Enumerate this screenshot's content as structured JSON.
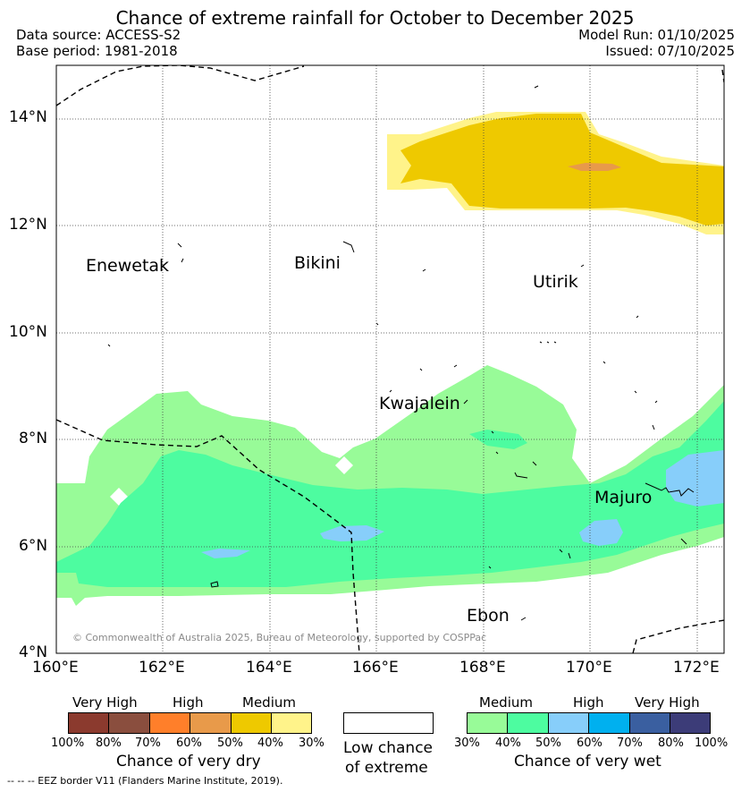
{
  "header": {
    "title": "Chance of extreme rainfall for October to December 2025",
    "data_source": "Data source: ACCESS-S2",
    "base_period": "Base period: 1981-2018",
    "model_run": "Model Run: 01/10/2025",
    "issued": "Issued: 07/10/2025"
  },
  "map": {
    "lat_labels": [
      "14°N",
      "12°N",
      "10°N",
      "8°N",
      "6°N",
      "4°N"
    ],
    "lon_labels": [
      "160°E",
      "162°E",
      "164°E",
      "166°E",
      "168°E",
      "170°E",
      "172°E"
    ],
    "places": {
      "enewetak": "Enewetak",
      "bikini": "Bikini",
      "utirik": "Utirik",
      "kwajalein": "Kwajalein",
      "majuro": "Majuro",
      "ebon": "Ebon"
    },
    "copyright": "© Commonwealth of Australia 2025, Bureau of Meteorology, supported by COSPPac"
  },
  "legend": {
    "dry": {
      "captions": [
        "Very High",
        "High",
        "Medium"
      ],
      "ticks": [
        "100%",
        "80%",
        "70%",
        "60%",
        "50%",
        "40%",
        "30%"
      ],
      "colors": [
        "#8b3a2e",
        "#8a4e3e",
        "#ff7f2a",
        "#e89a4a",
        "#eec900",
        "#fff38a"
      ],
      "title": "Chance of very dry"
    },
    "neutral": {
      "title_line1": "Low chance",
      "title_line2": "of extreme",
      "color": "#ffffff"
    },
    "wet": {
      "captions": [
        "Medium",
        "High",
        "Very High"
      ],
      "ticks": [
        "30%",
        "40%",
        "50%",
        "60%",
        "70%",
        "80%",
        "100%"
      ],
      "colors": [
        "#98fb98",
        "#4dfca0",
        "#87cefa",
        "#00b0ef",
        "#3a5fa0",
        "#3c3c78"
      ],
      "title": "Chance of very wet"
    },
    "eez_note": "-- -- -- EEZ border V11 (Flanders Marine Institute, 2019)."
  },
  "colors": {
    "dry_medium": "#eec900",
    "dry_low": "#fff38a",
    "dry_high": "#e89a4a",
    "wet_medium": "#98fb98",
    "wet_mid": "#4dfca0",
    "wet_high": "#87cefa"
  }
}
